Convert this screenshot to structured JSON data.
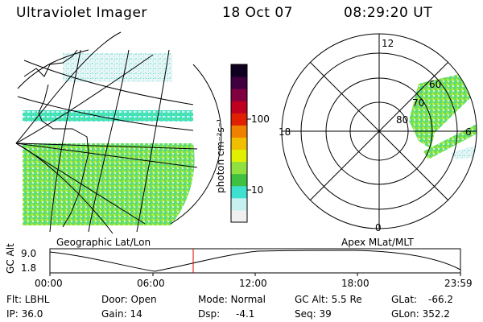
{
  "header": {
    "instrument": "Ultraviolet Imager",
    "date": "18 Oct 07",
    "time": "08:29:20 UT"
  },
  "colorbar": {
    "unit_label": "photon cm⁻²s⁻¹",
    "tick_labels": [
      "100",
      "10"
    ],
    "scale": "log",
    "colors": [
      "#f0f0f0",
      "#c8f0f0",
      "#40e0d0",
      "#40c040",
      "#90e040",
      "#e0f000",
      "#f0c000",
      "#f08000",
      "#e02000",
      "#c00020",
      "#800040",
      "#400040",
      "#100020"
    ]
  },
  "left_panel": {
    "label": "Geographic Lat/Lon"
  },
  "right_panel": {
    "label": "Apex MLat/MLT",
    "mlt_labels": {
      "top": "12",
      "left": "18",
      "right": "6",
      "bottom": "0"
    },
    "lat_labels": [
      "60",
      "70",
      "80"
    ]
  },
  "altitude_plot": {
    "ylabel": "GC Alt",
    "yticks": [
      "9.0",
      "1.8"
    ],
    "xticks": [
      "00:00",
      "06:00",
      "12:00",
      "18:00",
      "23:59"
    ],
    "current_marker_color": "#e00000"
  },
  "status": {
    "flt": "Flt: LBHL",
    "ip": "IP: 36.0",
    "door": "Door: Open",
    "gain": "Gain: 14",
    "mode": "Mode: Normal",
    "dsp_label": "Dsp:",
    "dsp_value": "-4.1",
    "gcalt": "GC Alt: 5.5 Re",
    "seq": "Seq: 39",
    "glat_label": "GLat:",
    "glat_value": "-66.2",
    "glon": "GLon: 352.2"
  }
}
